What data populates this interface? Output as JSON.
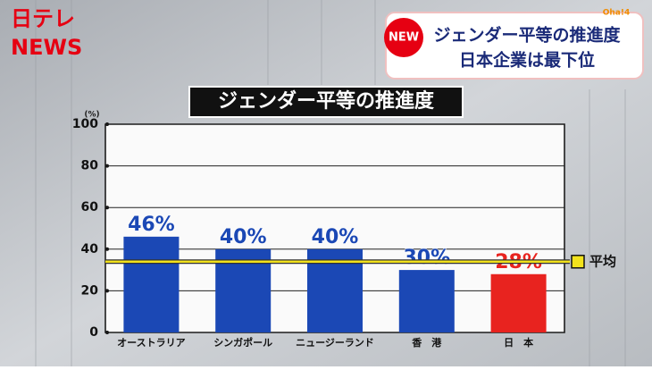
{
  "logo": {
    "brand": "日テレ",
    "news": "NEWS"
  },
  "banner": {
    "badge": "NEW",
    "program": "Oha!4",
    "line1": "ジェンダー平等の推進度",
    "line2": "日本企業は最下位"
  },
  "chart_data": {
    "type": "bar",
    "title": "ジェンダー平等の推進度",
    "y_unit": "(%)",
    "categories": [
      "オーストラリア",
      "シンガポール",
      "ニュージーランド",
      "香　港",
      "日　本"
    ],
    "values": [
      46,
      40,
      40,
      30,
      28
    ],
    "value_labels": [
      "46%",
      "40%",
      "40%",
      "30%",
      "28%"
    ],
    "colors": [
      "#1b48b5",
      "#1b48b5",
      "#1b48b5",
      "#1b48b5",
      "#e8231f"
    ],
    "label_colors": [
      "#1b48b5",
      "#1b48b5",
      "#1b48b5",
      "#1b48b5",
      "#e8231f"
    ],
    "ylim": [
      0,
      100
    ],
    "yticks": [
      0,
      20,
      40,
      60,
      80,
      100
    ],
    "grid": true,
    "average": {
      "label": "平均",
      "value": 34,
      "color": "#f2e21c"
    }
  }
}
